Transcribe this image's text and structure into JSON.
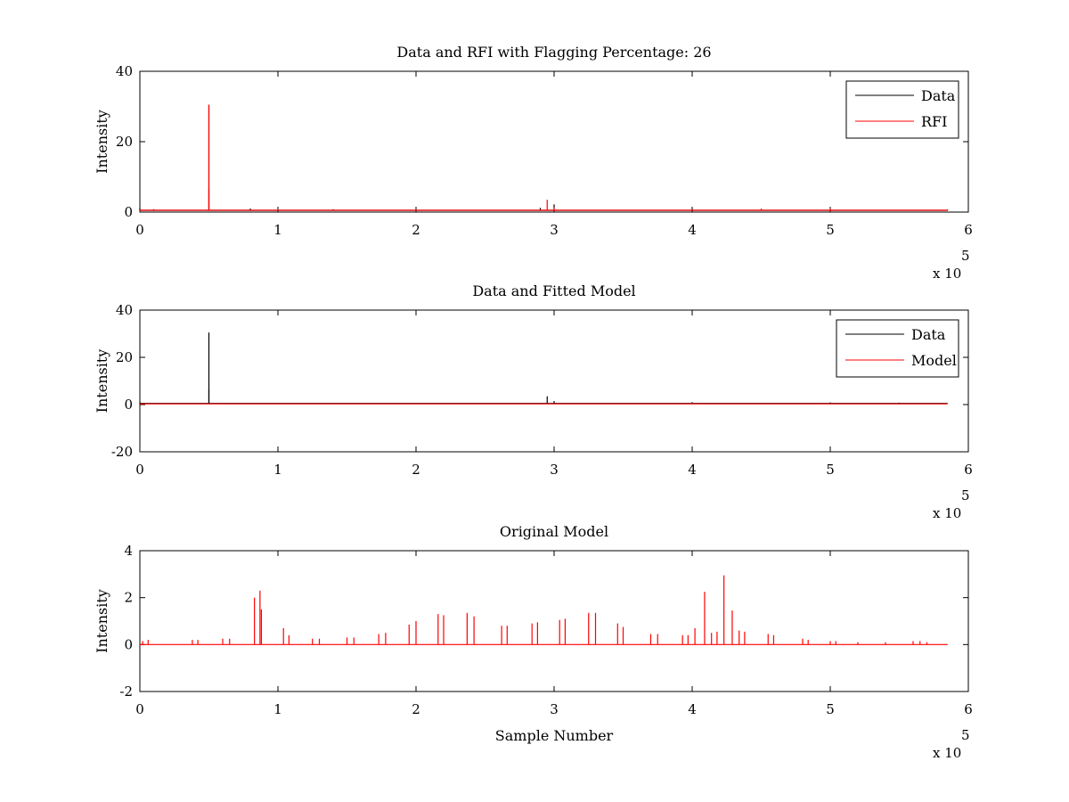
{
  "figure": {
    "background": "#ffffff"
  },
  "chart_data": [
    {
      "type": "line",
      "title": "Data and RFI with Flagging Percentage: 26",
      "xlabel": "",
      "ylabel": "Intensity",
      "xlim": [
        0,
        6
      ],
      "ylim": [
        0,
        40
      ],
      "x_ticks": [
        "0",
        "1",
        "2",
        "3",
        "4",
        "5",
        "6"
      ],
      "y_ticks": [
        "0",
        "20",
        "40"
      ],
      "x_multiplier": "x 10",
      "x_multiplier_exp": "5",
      "grid": false,
      "legend_position": "top-right",
      "series": [
        {
          "name": "Data",
          "color": "#000000",
          "baseline": 0.5,
          "spikes": [
            [
              0.0,
              1.2
            ],
            [
              0.1,
              0.8
            ],
            [
              0.5,
              30.5
            ],
            [
              0.8,
              1.0
            ],
            [
              1.4,
              0.8
            ],
            [
              2.9,
              1.2
            ],
            [
              3.0,
              2.2
            ],
            [
              4.0,
              0.9
            ],
            [
              5.0,
              0.8
            ],
            [
              5.85,
              0.7
            ]
          ]
        },
        {
          "name": "RFI",
          "color": "#ff0000",
          "baseline": 0.5,
          "spikes": [
            [
              0.5,
              30.5
            ],
            [
              0.5,
              6.5
            ],
            [
              2.95,
              3.5
            ],
            [
              3.0,
              1.3
            ],
            [
              4.5,
              1.0
            ],
            [
              5.0,
              1.0
            ]
          ]
        }
      ]
    },
    {
      "type": "line",
      "title": "Data and Fitted Model",
      "xlabel": "",
      "ylabel": "Intensity",
      "xlim": [
        0,
        6
      ],
      "ylim": [
        -20,
        40
      ],
      "x_ticks": [
        "0",
        "1",
        "2",
        "3",
        "4",
        "5",
        "6"
      ],
      "y_ticks": [
        "-20",
        "0",
        "20",
        "40"
      ],
      "x_multiplier": "x 10",
      "x_multiplier_exp": "5",
      "grid": false,
      "legend_position": "top-right",
      "series": [
        {
          "name": "Data",
          "color": "#000000",
          "baseline": 0.5,
          "spikes": [
            [
              0.0,
              1.2
            ],
            [
              0.5,
              30.5
            ],
            [
              0.5,
              6.5
            ],
            [
              2.95,
              3.5
            ],
            [
              3.0,
              1.5
            ],
            [
              4.0,
              1.0
            ],
            [
              5.0,
              0.9
            ],
            [
              5.5,
              0.8
            ]
          ]
        },
        {
          "name": "Model",
          "color": "#ff0000",
          "baseline": 0.3,
          "spikes": []
        }
      ]
    },
    {
      "type": "line",
      "title": "Original Model",
      "xlabel": "Sample Number",
      "ylabel": "Intensity",
      "xlim": [
        0,
        6
      ],
      "ylim": [
        -2,
        4
      ],
      "x_ticks": [
        "0",
        "1",
        "2",
        "3",
        "4",
        "5",
        "6"
      ],
      "y_ticks": [
        "-2",
        "0",
        "2",
        "4"
      ],
      "x_multiplier": "x 10",
      "x_multiplier_exp": "5",
      "grid": false,
      "series": [
        {
          "color": "#ff0000",
          "baseline": 0,
          "spikes": [
            [
              0.02,
              0.15
            ],
            [
              0.06,
              0.2
            ],
            [
              0.38,
              0.2
            ],
            [
              0.42,
              0.2
            ],
            [
              0.6,
              0.25
            ],
            [
              0.65,
              0.25
            ],
            [
              0.83,
              2.0
            ],
            [
              0.87,
              2.3
            ],
            [
              0.88,
              1.5
            ],
            [
              1.04,
              0.7
            ],
            [
              1.08,
              0.4
            ],
            [
              1.25,
              0.25
            ],
            [
              1.3,
              0.25
            ],
            [
              1.5,
              0.3
            ],
            [
              1.55,
              0.3
            ],
            [
              1.73,
              0.45
            ],
            [
              1.78,
              0.5
            ],
            [
              1.95,
              0.85
            ],
            [
              2.0,
              1.0
            ],
            [
              2.16,
              1.3
            ],
            [
              2.2,
              1.25
            ],
            [
              2.37,
              1.35
            ],
            [
              2.42,
              1.2
            ],
            [
              2.62,
              0.8
            ],
            [
              2.66,
              0.8
            ],
            [
              2.84,
              0.9
            ],
            [
              2.88,
              0.95
            ],
            [
              3.04,
              1.05
            ],
            [
              3.08,
              1.1
            ],
            [
              3.25,
              1.35
            ],
            [
              3.3,
              1.35
            ],
            [
              3.46,
              0.9
            ],
            [
              3.5,
              0.75
            ],
            [
              3.7,
              0.45
            ],
            [
              3.75,
              0.45
            ],
            [
              3.93,
              0.4
            ],
            [
              3.97,
              0.4
            ],
            [
              4.02,
              0.7
            ],
            [
              4.09,
              2.25
            ],
            [
              4.14,
              0.5
            ],
            [
              4.18,
              0.55
            ],
            [
              4.23,
              2.95
            ],
            [
              4.29,
              1.45
            ],
            [
              4.34,
              0.6
            ],
            [
              4.38,
              0.55
            ],
            [
              4.55,
              0.45
            ],
            [
              4.59,
              0.4
            ],
            [
              4.8,
              0.25
            ],
            [
              4.84,
              0.2
            ],
            [
              5.0,
              0.15
            ],
            [
              5.04,
              0.15
            ],
            [
              5.2,
              0.1
            ],
            [
              5.4,
              0.1
            ],
            [
              5.6,
              0.15
            ],
            [
              5.65,
              0.15
            ],
            [
              5.7,
              0.1
            ]
          ]
        }
      ]
    }
  ]
}
